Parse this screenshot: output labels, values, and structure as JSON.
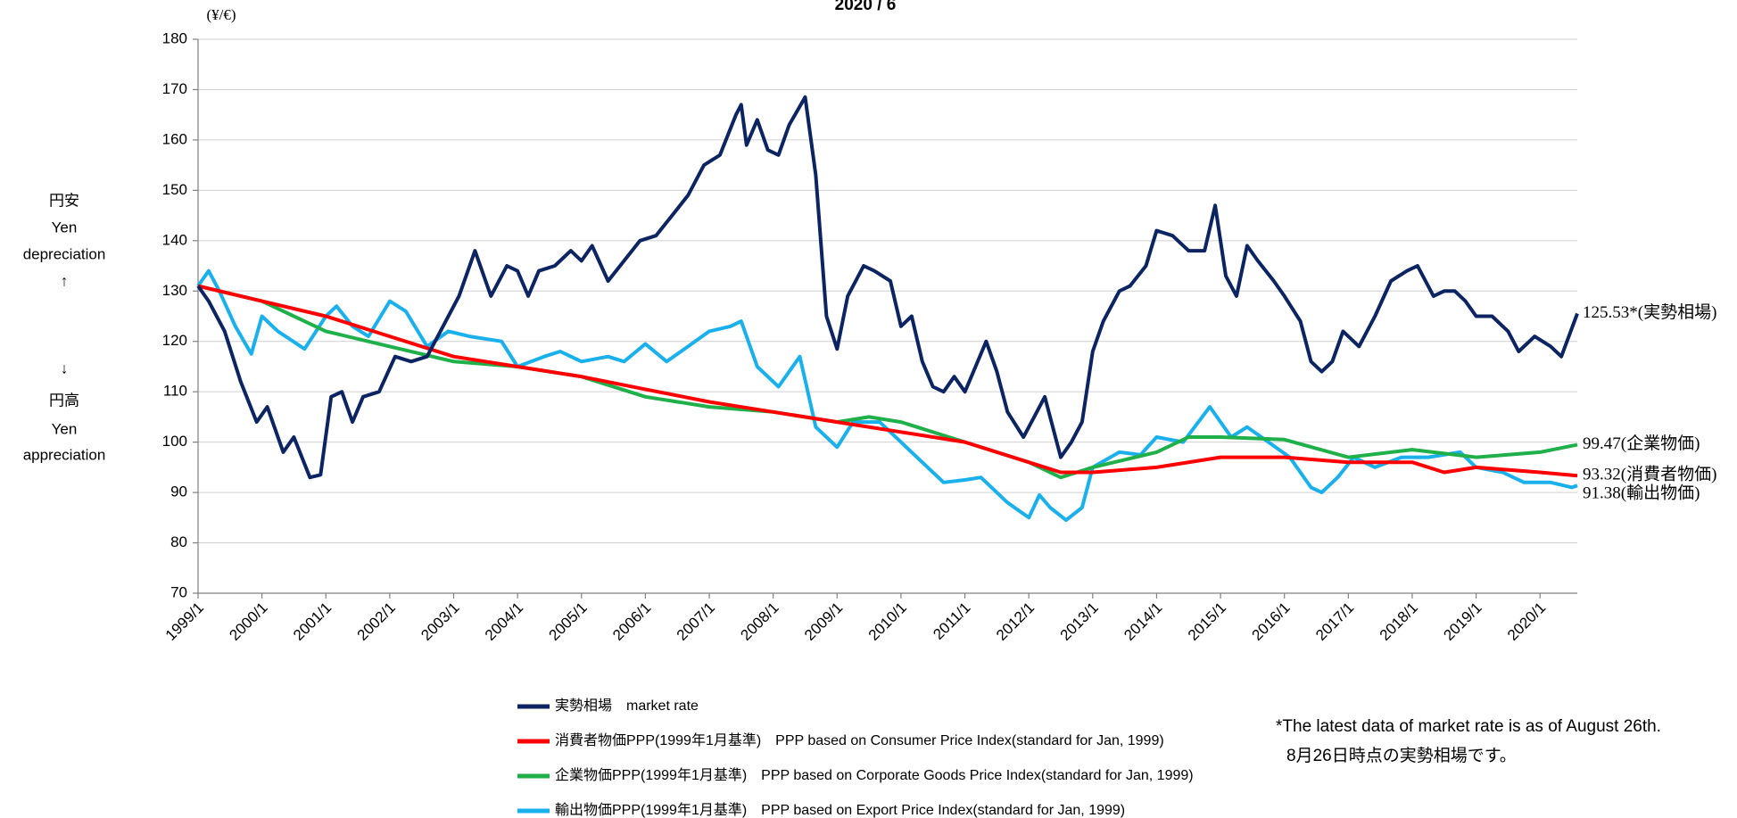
{
  "chart_data": {
    "type": "line",
    "title": "2020 / 6",
    "y_unit": "(¥/€)",
    "left_annotations": [
      "円安",
      "Yen",
      "depreciation",
      "↑",
      "↓",
      "円高",
      "Yen",
      "appreciation"
    ],
    "footnote": [
      "*The latest data of market rate is as of August 26th.",
      "8月26日時点の実勢相場です。"
    ],
    "ylim": [
      70,
      180
    ],
    "yticks": [
      70,
      80,
      90,
      100,
      110,
      120,
      130,
      140,
      150,
      160,
      170,
      180
    ],
    "grid": true,
    "xlim": [
      "1999/1",
      "2020/8"
    ],
    "xticks": [
      "1999/1",
      "2000/1",
      "2001/1",
      "2002/1",
      "2003/1",
      "2004/1",
      "2005/1",
      "2006/1",
      "2007/1",
      "2008/1",
      "2009/1",
      "2010/1",
      "2011/1",
      "2012/1",
      "2013/1",
      "2014/1",
      "2015/1",
      "2016/1",
      "2017/1",
      "2018/1",
      "2019/1",
      "2020/1"
    ],
    "series": [
      {
        "name": "実勢相場　market rate",
        "color": "#0d2462",
        "label": "125.53*(実勢相場)",
        "x": [
          "1999/1",
          "1999/3",
          "1999/6",
          "1999/9",
          "1999/12",
          "2000/2",
          "2000/5",
          "2000/7",
          "2000/10",
          "2000/12",
          "2001/2",
          "2001/4",
          "2001/6",
          "2001/8",
          "2001/11",
          "2002/2",
          "2002/5",
          "2002/8",
          "2002/11",
          "2003/2",
          "2003/5",
          "2003/8",
          "2003/11",
          "2004/1",
          "2004/3",
          "2004/5",
          "2004/8",
          "2004/11",
          "2005/1",
          "2005/3",
          "2005/6",
          "2005/9",
          "2005/12",
          "2006/3",
          "2006/6",
          "2006/9",
          "2006/12",
          "2007/3",
          "2007/6",
          "2007/7",
          "2007/8",
          "2007/10",
          "2007/12",
          "2008/2",
          "2008/4",
          "2008/7",
          "2008/9",
          "2008/11",
          "2009/1",
          "2009/3",
          "2009/6",
          "2009/8",
          "2009/11",
          "2010/1",
          "2010/3",
          "2010/5",
          "2010/7",
          "2010/9",
          "2010/11",
          "2011/1",
          "2011/3",
          "2011/5",
          "2011/7",
          "2011/9",
          "2011/12",
          "2012/2",
          "2012/4",
          "2012/7",
          "2012/9",
          "2012/11",
          "2013/1",
          "2013/3",
          "2013/6",
          "2013/8",
          "2013/11",
          "2014/1",
          "2014/4",
          "2014/7",
          "2014/10",
          "2014/12",
          "2015/2",
          "2015/4",
          "2015/6",
          "2015/8",
          "2015/11",
          "2016/1",
          "2016/4",
          "2016/6",
          "2016/8",
          "2016/10",
          "2016/12",
          "2017/3",
          "2017/6",
          "2017/9",
          "2017/12",
          "2018/2",
          "2018/5",
          "2018/7",
          "2018/9",
          "2018/11",
          "2019/1",
          "2019/4",
          "2019/7",
          "2019/9",
          "2019/12",
          "2020/3",
          "2020/5",
          "2020/8"
        ],
        "values": [
          131,
          128,
          122,
          112,
          104,
          107,
          98,
          101,
          93,
          93.5,
          109,
          110,
          104,
          109,
          110,
          117,
          116,
          117,
          123,
          129,
          138,
          129,
          135,
          134,
          129,
          134,
          135,
          138,
          136,
          139,
          132,
          136,
          140,
          141,
          145,
          149,
          155,
          157,
          165,
          167,
          159,
          164,
          158,
          157,
          163,
          168.5,
          153,
          125,
          118.5,
          129,
          135,
          134,
          132,
          123,
          125,
          116,
          111,
          110,
          113,
          110,
          115,
          120,
          114,
          106,
          101,
          105,
          109,
          97,
          100,
          104,
          118,
          124,
          130,
          131,
          135,
          142,
          141,
          138,
          138,
          147,
          133,
          129,
          139,
          136,
          132,
          129,
          124,
          116,
          114,
          116,
          122,
          119,
          125,
          132,
          134,
          135,
          129,
          130,
          130,
          128,
          125,
          125,
          122,
          118,
          121,
          119,
          117,
          125.53
        ]
      },
      {
        "name": "消費者物価PPP(1999年1月基準)　PPP based on Consumer Price Index(standard for Jan, 1999)",
        "color": "#ff0000",
        "label": "93.32(消費者物価)",
        "x": [
          "1999/1",
          "2000/1",
          "2001/1",
          "2002/1",
          "2003/1",
          "2004/1",
          "2005/1",
          "2006/1",
          "2007/1",
          "2008/1",
          "2009/1",
          "2010/1",
          "2011/1",
          "2012/1",
          "2012/7",
          "2013/1",
          "2014/1",
          "2015/1",
          "2016/1",
          "2017/1",
          "2018/1",
          "2018/7",
          "2019/1",
          "2020/1",
          "2020/8"
        ],
        "values": [
          131,
          128,
          125,
          121,
          117,
          115,
          113,
          110.5,
          108,
          106,
          104,
          102,
          100,
          96,
          94,
          94,
          95,
          97,
          97,
          96,
          96,
          94,
          95,
          94,
          93.32
        ]
      },
      {
        "name": "企業物価PPP(1999年1月基準)　PPP based on Corporate Goods Price Index(standard for Jan, 1999)",
        "color": "#1fb04a",
        "label": "99.47(企業物価)",
        "x": [
          "1999/1",
          "2000/1",
          "2001/1",
          "2002/1",
          "2003/1",
          "2004/1",
          "2005/1",
          "2006/1",
          "2007/1",
          "2008/1",
          "2009/1",
          "2009/7",
          "2010/1",
          "2011/1",
          "2012/1",
          "2012/7",
          "2013/1",
          "2014/1",
          "2014/7",
          "2015/1",
          "2016/1",
          "2017/1",
          "2018/1",
          "2019/1",
          "2020/1",
          "2020/8"
        ],
        "values": [
          131,
          128,
          122,
          119,
          116,
          115,
          113,
          109,
          107,
          106,
          104,
          105,
          104,
          100,
          96,
          93,
          95,
          98,
          101,
          101,
          100.5,
          97,
          98.5,
          97,
          98,
          99.47
        ]
      },
      {
        "name": "輸出物価PPP(1999年1月基準)　PPP based on Export Price Index(standard for Jan, 1999)",
        "color": "#1ab0ec",
        "label": "91.38(輸出物価)",
        "x": [
          "1999/1",
          "1999/3",
          "1999/5",
          "1999/8",
          "1999/11",
          "2000/1",
          "2000/4",
          "2000/9",
          "2001/1",
          "2001/3",
          "2001/6",
          "2001/9",
          "2002/1",
          "2002/4",
          "2002/8",
          "2002/12",
          "2003/4",
          "2003/10",
          "2004/1",
          "2004/6",
          "2004/9",
          "2005/1",
          "2005/6",
          "2005/9",
          "2006/1",
          "2006/5",
          "2006/9",
          "2007/1",
          "2007/5",
          "2007/7",
          "2007/10",
          "2008/2",
          "2008/6",
          "2008/9",
          "2009/1",
          "2009/4",
          "2009/9",
          "2010/1",
          "2010/4",
          "2010/9",
          "2011/1",
          "2011/4",
          "2011/9",
          "2012/1",
          "2012/3",
          "2012/5",
          "2012/8",
          "2012/11",
          "2013/1",
          "2013/6",
          "2013/10",
          "2014/1",
          "2014/6",
          "2014/11",
          "2015/3",
          "2015/6",
          "2015/10",
          "2016/2",
          "2016/6",
          "2016/8",
          "2016/11",
          "2017/2",
          "2017/6",
          "2017/11",
          "2018/4",
          "2018/10",
          "2019/1",
          "2019/6",
          "2019/10",
          "2020/3",
          "2020/7",
          "2020/8"
        ],
        "values": [
          131,
          134,
          130,
          123,
          117.5,
          125,
          122,
          118.5,
          125,
          127,
          123,
          121,
          128,
          126,
          119,
          122,
          121,
          120,
          115,
          117,
          118,
          116,
          117,
          116,
          119.5,
          116,
          119,
          122,
          123,
          124,
          115,
          111,
          117,
          103,
          99,
          104,
          104,
          100,
          97,
          92,
          92.5,
          93,
          88,
          85,
          89.5,
          87,
          84.5,
          87,
          95,
          98,
          97.5,
          101,
          100,
          107,
          101,
          103,
          100,
          97,
          91,
          90,
          93,
          97,
          95,
          97,
          97,
          98,
          95,
          94,
          92,
          92,
          91,
          91.38
        ]
      }
    ]
  }
}
